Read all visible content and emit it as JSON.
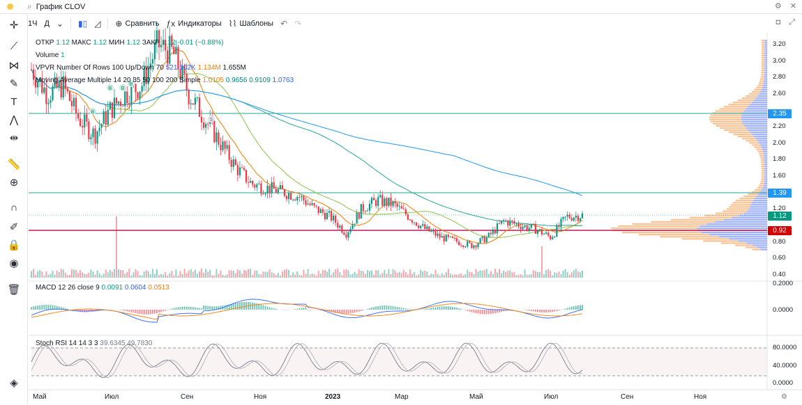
{
  "window": {
    "title": "График CLOV"
  },
  "toolbar": {
    "interval": "1Ч",
    "interval2": "Д",
    "compare": "Сравнить",
    "indicators": "Индикаторы",
    "templates": "Шаблоны"
  },
  "legend": {
    "ohlc_open_label": "ОТКР",
    "ohlc_open": "1.12",
    "ohlc_high_label": "МАКС",
    "ohlc_high": "1.12",
    "ohlc_low_label": "МИН",
    "ohlc_low": "1.12",
    "ohlc_close_label": "ЗАКР",
    "ohlc_close": "1.12",
    "ohlc_change": "-0.01 (−0.88%)",
    "volume_label": "Volume",
    "volume_value": "1",
    "vpvr_label": "VPVR Number Of Rows 100 Up/Down 70",
    "vpvr_v1": "521.102K",
    "vpvr_v2": "1.134M",
    "vpvr_v3": "1.655M",
    "ma_label": "Moving Average Multiple 14 20 35 50 100 200 Simple",
    "ma_v1": "1.0105",
    "ma_v2": "0.9656",
    "ma_v3": "0.9109",
    "ma_v4": "1.0763",
    "macd_label": "MACD 12 26 close 9",
    "macd_v1": "0.0091",
    "macd_v2": "0.0604",
    "macd_v3": "0.0513",
    "stoch_label": "Stoch RSI 14 14 3 3",
    "stoch_v1": "39.6345",
    "stoch_v2": "49.7830"
  },
  "price_axis": {
    "ticks": [
      "3.20",
      "3.00",
      "2.80",
      "2.60",
      "2.40",
      "2.20",
      "2.00",
      "1.80",
      "1.60",
      "1.40",
      "1.20",
      "1.00",
      "0.80",
      "0.60",
      "0.40"
    ],
    "tag_235": "2.35",
    "tag_139": "1.39",
    "tag_112": "1.12",
    "tag_092": "0.92"
  },
  "macd_axis": {
    "ticks": [
      "0.2000",
      "0.0000"
    ]
  },
  "stoch_axis": {
    "ticks": [
      "80.0000",
      "40.0000",
      "0.0000"
    ]
  },
  "time_axis": {
    "labels": [
      "Май",
      "Июл",
      "Сен",
      "Ноя",
      "2023",
      "Мар",
      "Май",
      "Июл",
      "Сен",
      "Ноя"
    ]
  },
  "markers": {
    "b1": "B",
    "b2": "B",
    "b3": "B",
    "b4": "B",
    "s1": "S"
  },
  "colors": {
    "up": "#089981",
    "down": "#f23645",
    "accent": "#2962ff",
    "hline": "#26a69a",
    "redline": "#c2185b"
  },
  "chart_data": {
    "type": "candlestick",
    "title": "CLOV",
    "x_labels": [
      "Май",
      "Июл",
      "Сен",
      "Ноя",
      "2023",
      "Мар",
      "Май",
      "Июл",
      "Сен",
      "Ноя"
    ],
    "ylim": [
      0.4,
      3.3
    ],
    "close_path": [
      2.9,
      2.6,
      2.7,
      2.3,
      2.1,
      2.4,
      2.6,
      2.7,
      3.2,
      3.1,
      2.6,
      2.3,
      2.0,
      1.7,
      1.5,
      1.45,
      1.4,
      1.35,
      1.2,
      1.1,
      0.9,
      1.2,
      1.3,
      1.25,
      1.1,
      0.95,
      0.85,
      0.8,
      0.75,
      0.85,
      1.05,
      1.0,
      0.95,
      0.85,
      1.1,
      1.12
    ],
    "horizontal_lines": [
      2.35,
      1.39,
      0.92
    ]
  }
}
